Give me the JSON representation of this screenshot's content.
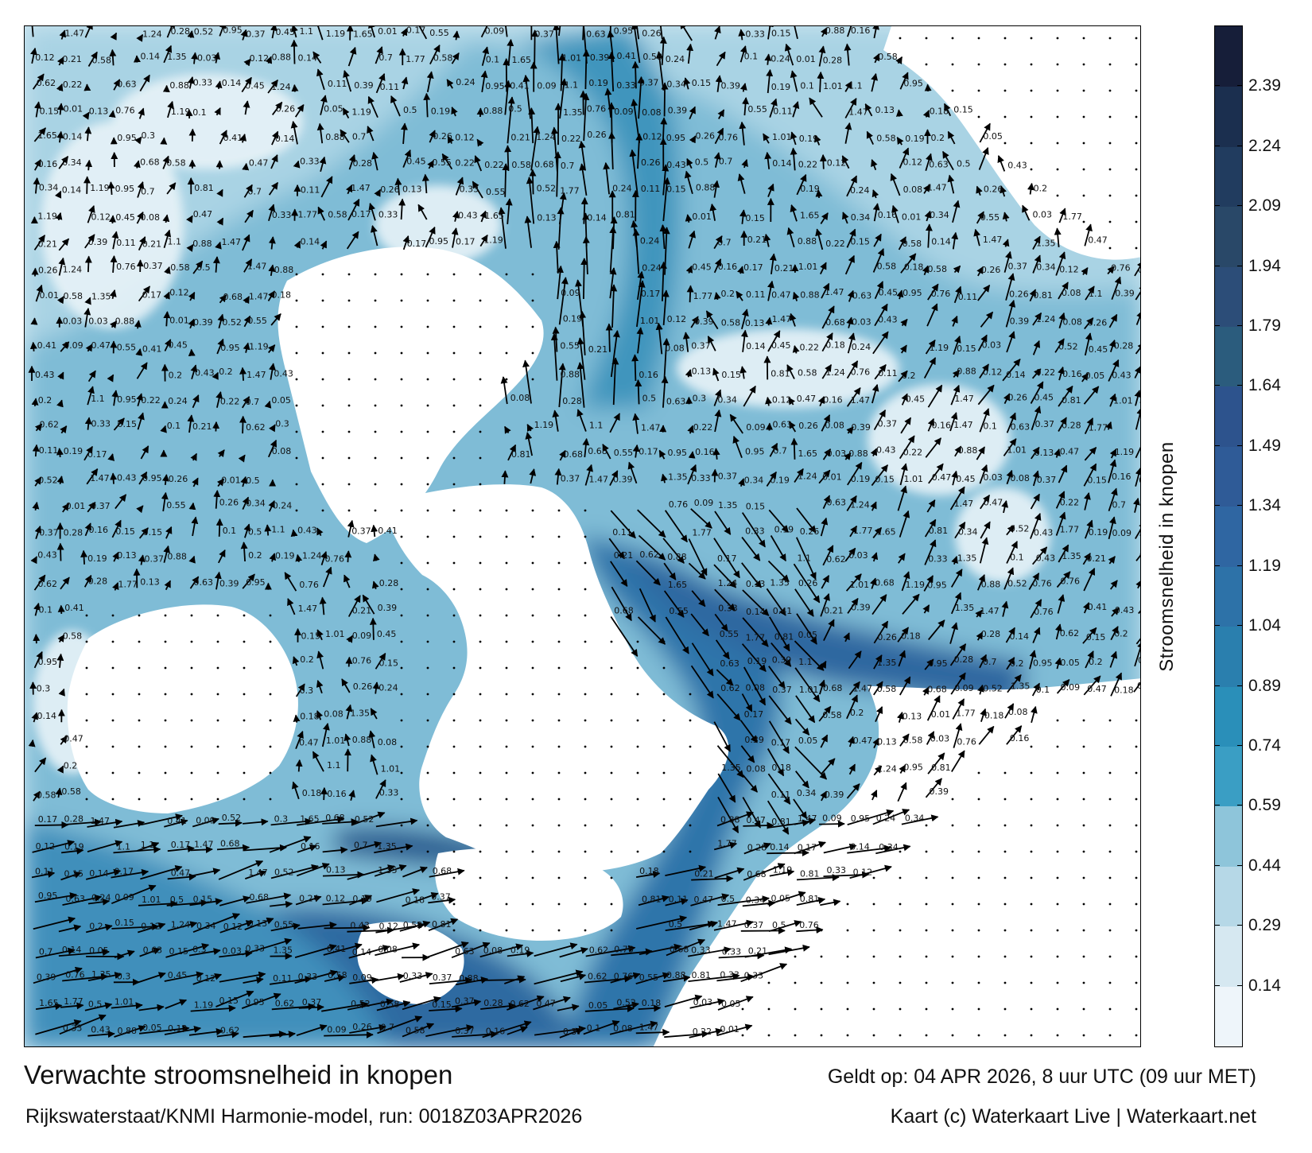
{
  "map": {
    "title": "Verwachte stroomsnelheid in knopen",
    "model_line": "Rijkswaterstaat/KNMI Harmonie-model, run: 0018Z03APR2026",
    "valid_time": "Geldt op: 04 APR 2026, 8 uur UTC (09 uur MET)",
    "credit": "Kaart (c) Waterkaart Live | Waterkaart.net",
    "land_color": "#ffffff",
    "arrow_color": "#000000"
  },
  "colorbar": {
    "label": "Stroomsnelheid in knopen",
    "ticks": [
      "0.14",
      "0.29",
      "0.44",
      "0.59",
      "0.74",
      "0.89",
      "1.04",
      "1.19",
      "1.34",
      "1.49",
      "1.64",
      "1.79",
      "1.94",
      "2.09",
      "2.24",
      "2.39"
    ],
    "colors": [
      "#eef5fa",
      "#d6e8f1",
      "#b6d8e7",
      "#8ec5da",
      "#3a9ec4",
      "#2a8fb9",
      "#2a7fae",
      "#2d72a8",
      "#2f66a2",
      "#2f5b97",
      "#2d538d",
      "#2b5c7d",
      "#2c4d78",
      "#294868",
      "#213c5f",
      "#1b2f4f",
      "#161e39"
    ]
  },
  "speed_labels": [
    "0.14",
    "0.26",
    "0.22",
    "0.21",
    "0.2",
    "0.19",
    "0.18",
    "0.17",
    "0.16",
    "0.15",
    "0.12",
    "0.1",
    "0.09",
    "0.08",
    "0.11",
    "0.13",
    "0.3",
    "0.33",
    "0.37",
    "0.41",
    "0.45",
    "0.5",
    "0.55",
    "0.62",
    "0.7",
    "0.76",
    "0.81",
    "0.88",
    "0.95",
    "1.01",
    "1.1",
    "1.19",
    "1.24",
    "1.35",
    "1.47",
    "1.65",
    "1.77",
    "0.05",
    "0.03",
    "0.01",
    "0.24",
    "0.28",
    "0.34",
    "0.39",
    "0.43",
    "0.47",
    "0.52",
    "0.58",
    "0.63",
    "0.68"
  ]
}
